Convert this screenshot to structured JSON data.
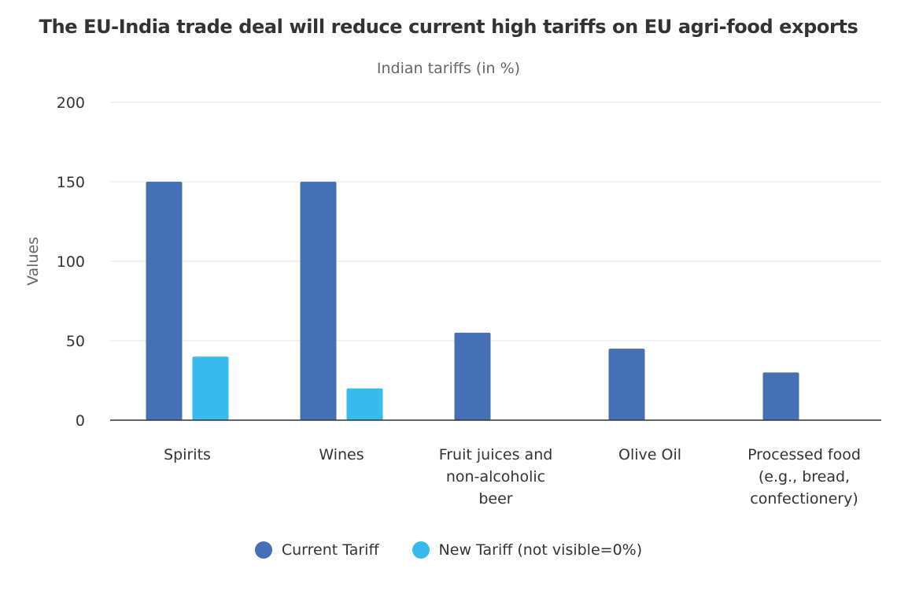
{
  "chart_data": {
    "type": "bar",
    "title": "The EU-India trade deal will reduce current high tariffs on EU agri-food exports",
    "subtitle": "Indian tariffs (in %)",
    "xlabel": "",
    "ylabel": "Values",
    "ylim": [
      0,
      200
    ],
    "yticks": [
      0,
      50,
      100,
      150,
      200
    ],
    "grid": true,
    "legend_position": "bottom-center",
    "categories": [
      [
        "Spirits"
      ],
      [
        "Wines"
      ],
      [
        "Fruit juices and",
        "non-alcoholic",
        "beer"
      ],
      [
        "Olive Oil"
      ],
      [
        "Processed food",
        "(e.g., bread,",
        "confectionery)"
      ]
    ],
    "series": [
      {
        "name": "Current Tariff",
        "color": "#4570b6",
        "values": [
          150,
          150,
          55,
          45,
          30
        ]
      },
      {
        "name": "New Tariff (not visible=0%)",
        "color": "#36bbec",
        "values": [
          40,
          20,
          0,
          0,
          0
        ]
      }
    ]
  }
}
